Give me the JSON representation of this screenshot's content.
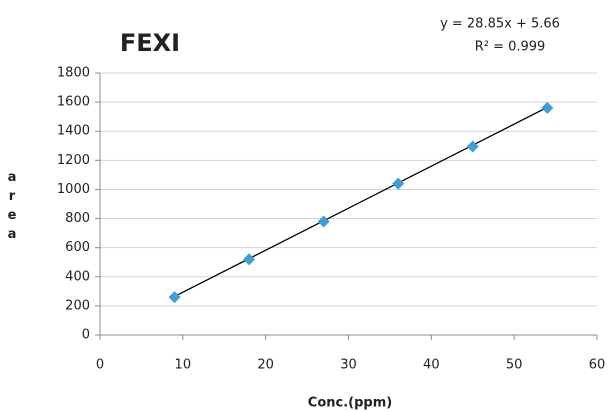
{
  "chart_data": {
    "type": "scatter",
    "title": "FEXI",
    "annotations": [
      "y = 28.85x + 5.66",
      "R² = 0.999"
    ],
    "xlabel": "Conc.(ppm)",
    "ylabel": "area",
    "x": [
      9,
      18,
      27,
      36,
      45,
      54
    ],
    "series": [
      {
        "color": "#3d9fd6",
        "values": [
          260,
          520,
          780,
          1040,
          1295,
          1560
        ]
      }
    ],
    "trendline": {
      "color": "#000000",
      "x": [
        9,
        54
      ],
      "values": [
        265,
        1564
      ]
    },
    "xlim": [
      0,
      60
    ],
    "xticks": [
      0,
      10,
      20,
      30,
      40,
      50,
      60
    ],
    "ylim": [
      0,
      1800
    ],
    "yticks": [
      0,
      200,
      400,
      600,
      800,
      1000,
      1200,
      1400,
      1600,
      1800
    ],
    "grid": true
  }
}
